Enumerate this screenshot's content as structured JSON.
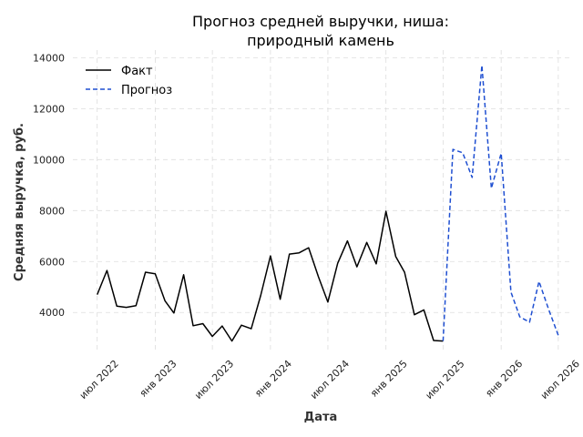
{
  "chart_data": {
    "type": "line",
    "title": [
      "Прогноз средней выручки, ниша:",
      "природный камень"
    ],
    "xlabel": "Дата",
    "ylabel": "Средняя выручка, руб.",
    "xlim": [
      "2022-04-15",
      "2026-08-05"
    ],
    "ylim": [
      2400,
      14300
    ],
    "yticks": [
      4000,
      6000,
      8000,
      10000,
      12000,
      14000
    ],
    "xticks": [
      {
        "date": "2022-07-01",
        "label": "июл 2022"
      },
      {
        "date": "2023-01-01",
        "label": "янв 2023"
      },
      {
        "date": "2023-07-01",
        "label": "июл 2023"
      },
      {
        "date": "2024-01-01",
        "label": "янв 2024"
      },
      {
        "date": "2024-07-01",
        "label": "июл 2024"
      },
      {
        "date": "2025-01-01",
        "label": "янв 2025"
      },
      {
        "date": "2025-07-01",
        "label": "июл 2025"
      },
      {
        "date": "2026-01-01",
        "label": "янв 2026"
      },
      {
        "date": "2026-07-01",
        "label": "июл 2026"
      }
    ],
    "grid": true,
    "legend_position": "top-left",
    "series": [
      {
        "name": "Факт",
        "color": "#000000",
        "style": "solid",
        "points": [
          [
            "2022-07-01",
            4700
          ],
          [
            "2022-08-01",
            5650
          ],
          [
            "2022-09-01",
            4250
          ],
          [
            "2022-10-01",
            4200
          ],
          [
            "2022-11-01",
            4270
          ],
          [
            "2022-12-01",
            5580
          ],
          [
            "2023-01-01",
            5520
          ],
          [
            "2023-02-01",
            4450
          ],
          [
            "2023-03-01",
            3980
          ],
          [
            "2023-04-01",
            5480
          ],
          [
            "2023-05-01",
            3480
          ],
          [
            "2023-06-01",
            3560
          ],
          [
            "2023-07-01",
            3060
          ],
          [
            "2023-08-01",
            3470
          ],
          [
            "2023-09-01",
            2880
          ],
          [
            "2023-10-01",
            3500
          ],
          [
            "2023-11-01",
            3360
          ],
          [
            "2023-12-01",
            4670
          ],
          [
            "2024-01-01",
            6220
          ],
          [
            "2024-02-01",
            4520
          ],
          [
            "2024-03-01",
            6290
          ],
          [
            "2024-04-01",
            6340
          ],
          [
            "2024-05-01",
            6540
          ],
          [
            "2024-06-01",
            5400
          ],
          [
            "2024-07-01",
            4410
          ],
          [
            "2024-08-01",
            5930
          ],
          [
            "2024-09-01",
            6810
          ],
          [
            "2024-10-01",
            5790
          ],
          [
            "2024-11-01",
            6750
          ],
          [
            "2024-12-01",
            5910
          ],
          [
            "2025-01-01",
            7970
          ],
          [
            "2025-02-01",
            6200
          ],
          [
            "2025-03-01",
            5580
          ],
          [
            "2025-04-01",
            3910
          ],
          [
            "2025-05-01",
            4100
          ],
          [
            "2025-06-01",
            2900
          ],
          [
            "2025-07-01",
            2880
          ]
        ]
      },
      {
        "name": "Прогноз",
        "color": "#1f4fd1",
        "style": "dashed",
        "points": [
          [
            "2025-07-01",
            2880
          ],
          [
            "2025-08-01",
            10400
          ],
          [
            "2025-09-01",
            10270
          ],
          [
            "2025-10-01",
            9300
          ],
          [
            "2025-11-01",
            13700
          ],
          [
            "2025-12-01",
            8870
          ],
          [
            "2026-01-01",
            10250
          ],
          [
            "2026-02-01",
            4800
          ],
          [
            "2026-03-01",
            3830
          ],
          [
            "2026-04-01",
            3620
          ],
          [
            "2026-05-01",
            5220
          ],
          [
            "2026-06-01",
            4100
          ],
          [
            "2026-07-01",
            3100
          ]
        ]
      }
    ]
  }
}
